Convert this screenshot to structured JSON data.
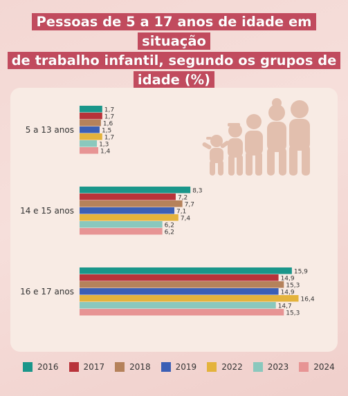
{
  "chart_data": {
    "type": "bar",
    "orientation": "horizontal",
    "title": "Pessoas de 5 a 17 anos de idade em situação de trabalho infantil, segundo os grupos de idade (%)",
    "title_lines": [
      "Pessoas de 5 a 17 anos de idade em situação",
      "de trabalho infantil, segundo os grupos de",
      "idade (%)"
    ],
    "categories": [
      "5 a 13 anos",
      "14 e 15 anos",
      "16 e 17 anos"
    ],
    "series": [
      {
        "name": "2016",
        "color": "#1a968a",
        "values": [
          1.7,
          8.3,
          15.9
        ],
        "labels": [
          "1,7",
          "8,3",
          "15,9"
        ]
      },
      {
        "name": "2017",
        "color": "#b8333a",
        "values": [
          1.7,
          7.2,
          14.9
        ],
        "labels": [
          "1,7",
          "7,2",
          "14,9"
        ]
      },
      {
        "name": "2018",
        "color": "#b5825b",
        "values": [
          1.6,
          7.7,
          15.3
        ],
        "labels": [
          "1,6",
          "7,7",
          "15,3"
        ]
      },
      {
        "name": "2019",
        "color": "#3b5fb5",
        "values": [
          1.5,
          7.1,
          14.9
        ],
        "labels": [
          "1,5",
          "7,1",
          "14,9"
        ]
      },
      {
        "name": "2022",
        "color": "#e4b33c",
        "values": [
          1.7,
          7.4,
          16.4
        ],
        "labels": [
          "1,7",
          "7,4",
          "16,4"
        ]
      },
      {
        "name": "2023",
        "color": "#8ac8bd",
        "values": [
          1.3,
          6.2,
          14.7
        ],
        "labels": [
          "1,3",
          "6,2",
          "14,7"
        ]
      },
      {
        "name": "2024",
        "color": "#e79494",
        "values": [
          1.4,
          6.2,
          15.3
        ],
        "labels": [
          "1,4",
          "6,2",
          "15,3"
        ]
      }
    ],
    "legend_position": "bottom",
    "grid": false
  },
  "colors": {
    "title_band": "#c14b5e",
    "card": "#f8ebe4",
    "illustration": "#e2bfae"
  },
  "decorations": [
    "family-silhouette-icon"
  ]
}
